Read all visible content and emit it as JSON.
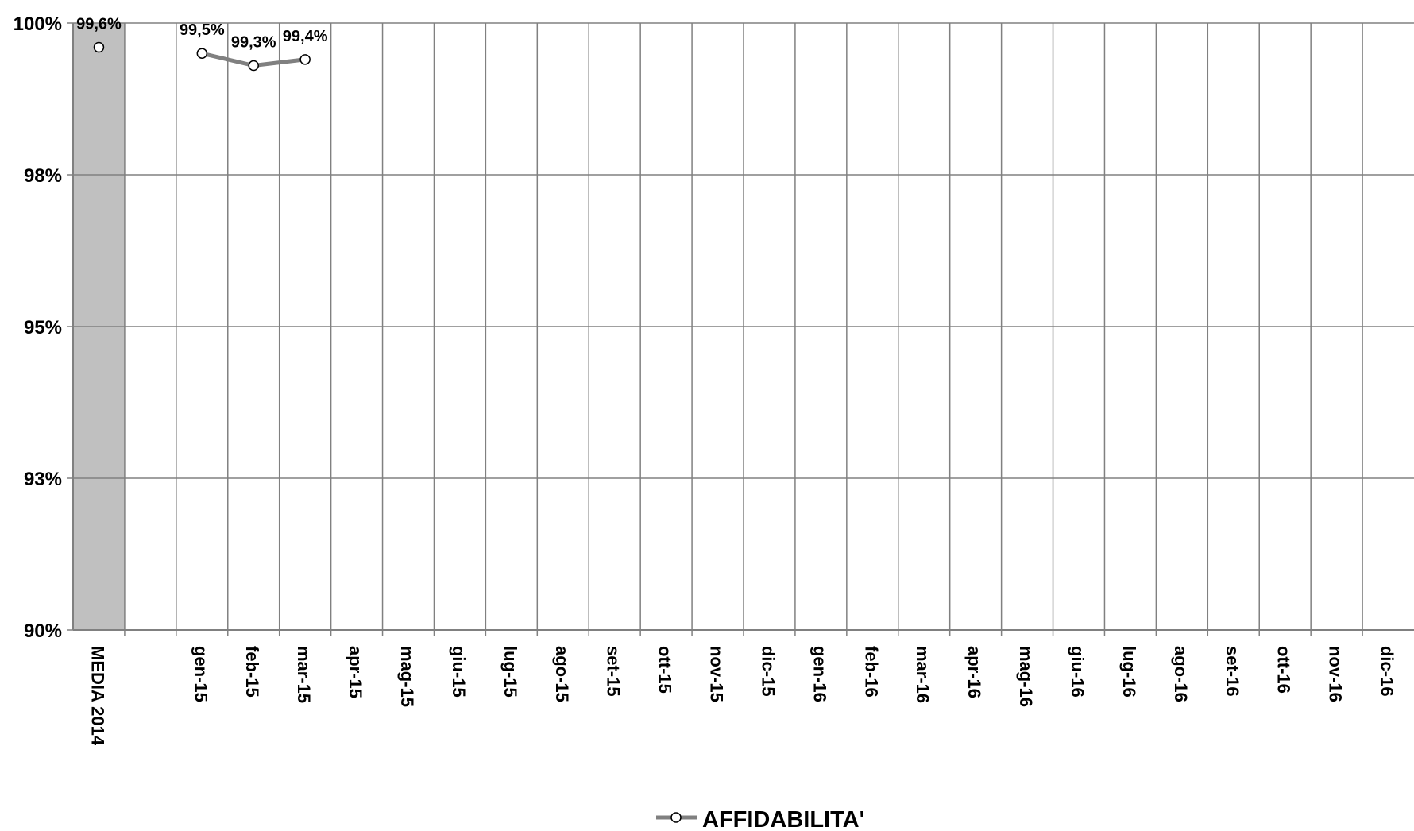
{
  "chart_data": {
    "type": "line",
    "categories": [
      "MEDIA 2014",
      "",
      "gen-15",
      "feb-15",
      "mar-15",
      "apr-15",
      "mag-15",
      "giu-15",
      "lug-15",
      "ago-15",
      "set-15",
      "ott-15",
      "nov-15",
      "dic-15",
      "gen-16",
      "feb-16",
      "mar-16",
      "apr-16",
      "mag-16",
      "giu-16",
      "lug-16",
      "ago-16",
      "set-16",
      "ott-16",
      "nov-16",
      "dic-16"
    ],
    "series": [
      {
        "name": "AFFIDABILITA'",
        "values": [
          99.6,
          null,
          99.5,
          99.3,
          99.4,
          null,
          null,
          null,
          null,
          null,
          null,
          null,
          null,
          null,
          null,
          null,
          null,
          null,
          null,
          null,
          null,
          null,
          null,
          null,
          null,
          null
        ],
        "data_labels": [
          "99,6%",
          "",
          "99,5%",
          "99,3%",
          "99,4%",
          "",
          "",
          "",
          "",
          "",
          "",
          "",
          "",
          "",
          "",
          "",
          "",
          "",
          "",
          "",
          "",
          "",
          "",
          "",
          "",
          ""
        ]
      }
    ],
    "yticks": [
      90,
      92.5,
      95,
      97.5,
      100
    ],
    "ytick_labels": [
      "90%",
      "93%",
      "95%",
      "98%",
      "100%"
    ],
    "ylim": [
      90,
      100
    ],
    "highlight_band_category": "MEDIA 2014",
    "grid": true,
    "legend_position": "bottom-center",
    "colors": {
      "line": "#808080",
      "marker_fill": "#ffffff",
      "marker_stroke": "#000000",
      "band": "#c0c0c0",
      "grid": "#808080",
      "axis": "#808080"
    }
  },
  "legend": {
    "label": "AFFIDABILITA'"
  }
}
